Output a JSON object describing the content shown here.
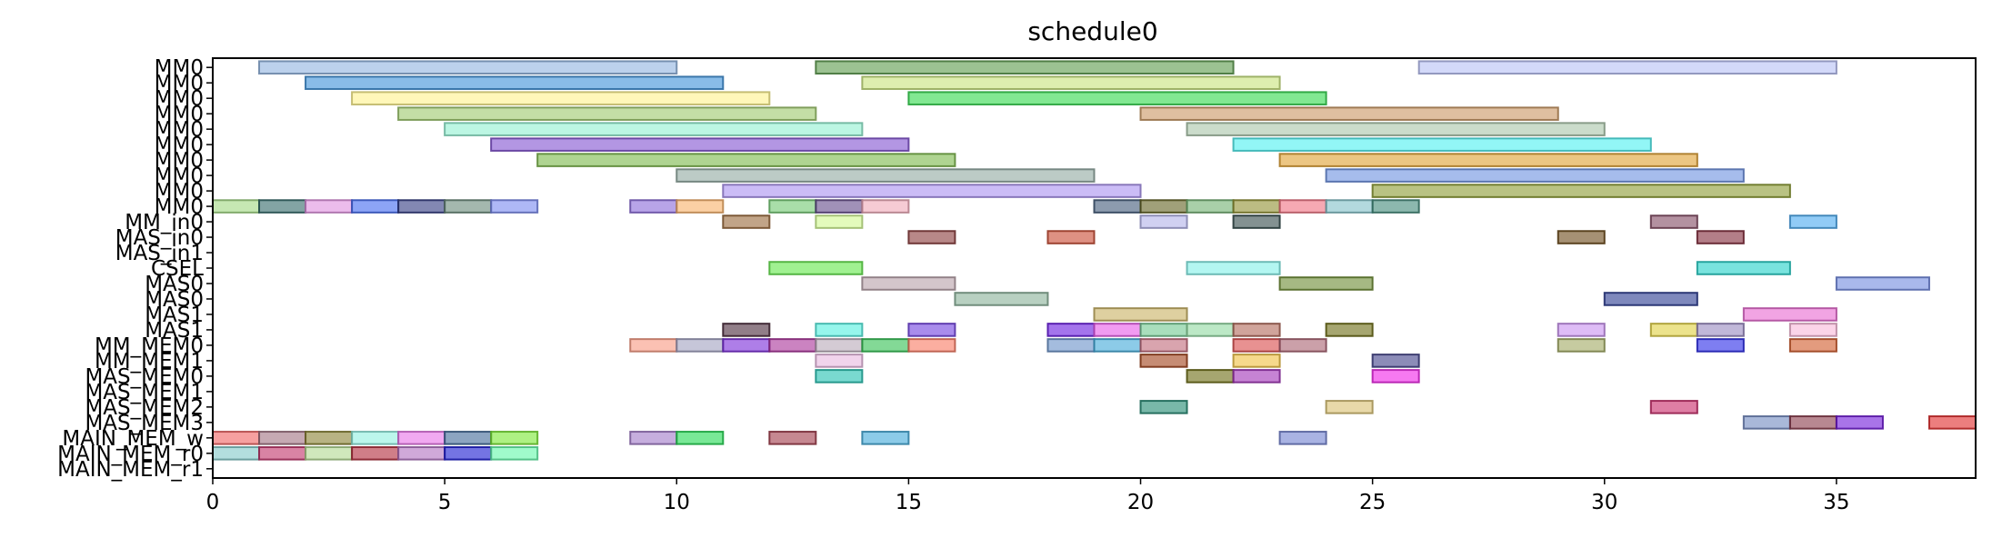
{
  "chart_data": {
    "type": "gantt",
    "title": "schedule0",
    "xlabel": "",
    "ylabel": "",
    "xlim": [
      0,
      38
    ],
    "xticks": [
      0,
      5,
      10,
      15,
      20,
      25,
      30,
      35
    ],
    "grid": false,
    "legend": "none",
    "rows": [
      "MM0",
      "MM0",
      "MM0",
      "MM0",
      "MM0",
      "MM0",
      "MM0",
      "MM0",
      "MM0",
      "MM0",
      "MM_in0",
      "MAS_in0",
      "MAS_in1",
      "CSEL",
      "MAS0",
      "MAS0",
      "MAS1",
      "MAS1",
      "MM_MEM0",
      "MM_MEM1",
      "MAS_MEM0",
      "MAS_MEM1",
      "MAS_MEM2",
      "MAS_MEM3",
      "MAIN_MEM_w",
      "MAIN_MEM_r0",
      "MAIN_MEM_r1"
    ],
    "tasks": [
      {
        "row": 0,
        "start": 1,
        "end": 10,
        "color": "#8fb3e0"
      },
      {
        "row": 0,
        "start": 13,
        "end": 22,
        "color": "#5a9a4a"
      },
      {
        "row": 0,
        "start": 26,
        "end": 35,
        "color": "#b6bff5"
      },
      {
        "row": 1,
        "start": 2,
        "end": 11,
        "color": "#3a8fd8"
      },
      {
        "row": 1,
        "start": 14,
        "end": 23,
        "color": "#c8e27a"
      },
      {
        "row": 2,
        "start": 3,
        "end": 12,
        "color": "#fff28a"
      },
      {
        "row": 2,
        "start": 15,
        "end": 24,
        "color": "#2fd84a"
      },
      {
        "row": 3,
        "start": 4,
        "end": 13,
        "color": "#9cc86a"
      },
      {
        "row": 3,
        "start": 20,
        "end": 29,
        "color": "#c99560"
      },
      {
        "row": 4,
        "start": 5,
        "end": 14,
        "color": "#90f0d0"
      },
      {
        "row": 4,
        "start": 21,
        "end": 30,
        "color": "#a8c4a8"
      },
      {
        "row": 5,
        "start": 6,
        "end": 15,
        "color": "#8050d0"
      },
      {
        "row": 5,
        "start": 22,
        "end": 31,
        "color": "#4af0f0"
      },
      {
        "row": 6,
        "start": 7,
        "end": 16,
        "color": "#7ab848"
      },
      {
        "row": 6,
        "start": 23,
        "end": 32,
        "color": "#e0a030"
      },
      {
        "row": 7,
        "start": 10,
        "end": 19,
        "color": "#90a8a0"
      },
      {
        "row": 7,
        "start": 24,
        "end": 33,
        "color": "#6a90e0"
      },
      {
        "row": 8,
        "start": 11,
        "end": 20,
        "color": "#a890f0"
      },
      {
        "row": 8,
        "start": 25,
        "end": 34,
        "color": "#8a9a30"
      },
      {
        "row": 9,
        "start": 0,
        "end": 1,
        "color": "#a0d880"
      },
      {
        "row": 9,
        "start": 1,
        "end": 2,
        "color": "#306868"
      },
      {
        "row": 9,
        "start": 2,
        "end": 3,
        "color": "#e090e0"
      },
      {
        "row": 9,
        "start": 3,
        "end": 4,
        "color": "#4068f0"
      },
      {
        "row": 9,
        "start": 4,
        "end": 5,
        "color": "#303880"
      },
      {
        "row": 9,
        "start": 5,
        "end": 6,
        "color": "#688878"
      },
      {
        "row": 9,
        "start": 6,
        "end": 7,
        "color": "#7888f0"
      },
      {
        "row": 9,
        "start": 9,
        "end": 10,
        "color": "#8868d8"
      },
      {
        "row": 9,
        "start": 10,
        "end": 11,
        "color": "#f8b068"
      },
      {
        "row": 9,
        "start": 12,
        "end": 13,
        "color": "#70c870"
      },
      {
        "row": 9,
        "start": 13,
        "end": 14,
        "color": "#604888"
      },
      {
        "row": 9,
        "start": 14,
        "end": 15,
        "color": "#f0a8b8"
      },
      {
        "row": 9,
        "start": 19,
        "end": 20,
        "color": "#405878"
      },
      {
        "row": 9,
        "start": 20,
        "end": 21,
        "color": "#606020"
      },
      {
        "row": 9,
        "start": 21,
        "end": 22,
        "color": "#70b070"
      },
      {
        "row": 9,
        "start": 22,
        "end": 23,
        "color": "#909030"
      },
      {
        "row": 9,
        "start": 23,
        "end": 24,
        "color": "#f07080"
      },
      {
        "row": 9,
        "start": 24,
        "end": 25,
        "color": "#80c0c8"
      },
      {
        "row": 9,
        "start": 25,
        "end": 26,
        "color": "#408878"
      },
      {
        "row": 10,
        "start": 11,
        "end": 12,
        "color": "#986838"
      },
      {
        "row": 10,
        "start": 13,
        "end": 14,
        "color": "#d0f890"
      },
      {
        "row": 10,
        "start": 20,
        "end": 21,
        "color": "#b0b0e8"
      },
      {
        "row": 10,
        "start": 22,
        "end": 23,
        "color": "#304848"
      },
      {
        "row": 10,
        "start": 31,
        "end": 32,
        "color": "#804860"
      },
      {
        "row": 10,
        "start": 34,
        "end": 35,
        "color": "#48a8f0"
      },
      {
        "row": 11,
        "start": 15,
        "end": 16,
        "color": "#883838"
      },
      {
        "row": 11,
        "start": 18,
        "end": 19,
        "color": "#c84830"
      },
      {
        "row": 11,
        "start": 29,
        "end": 30,
        "color": "#6a4818"
      },
      {
        "row": 11,
        "start": 32,
        "end": 33,
        "color": "#802838"
      },
      {
        "row": 13,
        "start": 12,
        "end": 14,
        "color": "#60e848"
      },
      {
        "row": 13,
        "start": 21,
        "end": 23,
        "color": "#80f0e8"
      },
      {
        "row": 13,
        "start": 32,
        "end": 34,
        "color": "#20d0c8"
      },
      {
        "row": 14,
        "start": 14,
        "end": 16,
        "color": "#b8a0a8"
      },
      {
        "row": 14,
        "start": 23,
        "end": 25,
        "color": "#6a8a30"
      },
      {
        "row": 14,
        "start": 35,
        "end": 37,
        "color": "#7088e0"
      },
      {
        "row": 15,
        "start": 16,
        "end": 18,
        "color": "#88b098"
      },
      {
        "row": 15,
        "start": 30,
        "end": 32,
        "color": "#283890"
      },
      {
        "row": 16,
        "start": 19,
        "end": 21,
        "color": "#c8b060"
      },
      {
        "row": 16,
        "start": 33,
        "end": 35,
        "color": "#e868d0"
      },
      {
        "row": 17,
        "start": 11,
        "end": 12,
        "color": "#482838"
      },
      {
        "row": 17,
        "start": 13,
        "end": 14,
        "color": "#50f0e0"
      },
      {
        "row": 17,
        "start": 15,
        "end": 16,
        "color": "#7040e0"
      },
      {
        "row": 17,
        "start": 18,
        "end": 19,
        "color": "#6818e0"
      },
      {
        "row": 17,
        "start": 19,
        "end": 20,
        "color": "#e858e8"
      },
      {
        "row": 17,
        "start": 20,
        "end": 21,
        "color": "#70c890"
      },
      {
        "row": 17,
        "start": 21,
        "end": 22,
        "color": "#90d8a0"
      },
      {
        "row": 17,
        "start": 22,
        "end": 23,
        "color": "#b06858"
      },
      {
        "row": 17,
        "start": 24,
        "end": 25,
        "color": "#6a6a10"
      },
      {
        "row": 17,
        "start": 29,
        "end": 30,
        "color": "#c890f0"
      },
      {
        "row": 17,
        "start": 31,
        "end": 32,
        "color": "#e0d040"
      },
      {
        "row": 17,
        "start": 32,
        "end": 33,
        "color": "#9888c0"
      },
      {
        "row": 17,
        "start": 34,
        "end": 35,
        "color": "#f8b8d8"
      },
      {
        "row": 18,
        "start": 9,
        "end": 10,
        "color": "#f89880"
      },
      {
        "row": 18,
        "start": 10,
        "end": 11,
        "color": "#a0a0c0"
      },
      {
        "row": 18,
        "start": 11,
        "end": 12,
        "color": "#7828d8"
      },
      {
        "row": 18,
        "start": 12,
        "end": 13,
        "color": "#a83098"
      },
      {
        "row": 18,
        "start": 13,
        "end": 14,
        "color": "#b8a8b8"
      },
      {
        "row": 18,
        "start": 14,
        "end": 15,
        "color": "#30c050"
      },
      {
        "row": 18,
        "start": 15,
        "end": 16,
        "color": "#f87860"
      },
      {
        "row": 18,
        "start": 18,
        "end": 19,
        "color": "#6890c8"
      },
      {
        "row": 18,
        "start": 19,
        "end": 20,
        "color": "#40a8d8"
      },
      {
        "row": 18,
        "start": 20,
        "end": 21,
        "color": "#c06878"
      },
      {
        "row": 18,
        "start": 22,
        "end": 23,
        "color": "#d84848"
      },
      {
        "row": 18,
        "start": 23,
        "end": 24,
        "color": "#a86070"
      },
      {
        "row": 18,
        "start": 29,
        "end": 30,
        "color": "#a0a860"
      },
      {
        "row": 18,
        "start": 32,
        "end": 33,
        "color": "#2828e8"
      },
      {
        "row": 18,
        "start": 34,
        "end": 35,
        "color": "#d05828"
      },
      {
        "row": 19,
        "start": 13,
        "end": 14,
        "color": "#e8b8e0"
      },
      {
        "row": 19,
        "start": 20,
        "end": 21,
        "color": "#a04018"
      },
      {
        "row": 19,
        "start": 22,
        "end": 23,
        "color": "#f0c040"
      },
      {
        "row": 19,
        "start": 25,
        "end": 26,
        "color": "#404088"
      },
      {
        "row": 20,
        "start": 13,
        "end": 14,
        "color": "#20c0b0"
      },
      {
        "row": 20,
        "start": 21,
        "end": 22,
        "color": "#6a6a10"
      },
      {
        "row": 20,
        "start": 22,
        "end": 23,
        "color": "#a030b8"
      },
      {
        "row": 20,
        "start": 25,
        "end": 26,
        "color": "#f020e8"
      },
      {
        "row": 22,
        "start": 20,
        "end": 21,
        "color": "#208870"
      },
      {
        "row": 22,
        "start": 24,
        "end": 25,
        "color": "#d8c070"
      },
      {
        "row": 22,
        "start": 31,
        "end": 32,
        "color": "#c82868"
      },
      {
        "row": 23,
        "start": 33,
        "end": 34,
        "color": "#7088c0"
      },
      {
        "row": 23,
        "start": 34,
        "end": 35,
        "color": "#883848"
      },
      {
        "row": 23,
        "start": 35,
        "end": 36,
        "color": "#7018d8"
      },
      {
        "row": 23,
        "start": 37,
        "end": 38,
        "color": "#e02828"
      },
      {
        "row": 24,
        "start": 0,
        "end": 1,
        "color": "#f06060"
      },
      {
        "row": 24,
        "start": 1,
        "end": 2,
        "color": "#a07080"
      },
      {
        "row": 24,
        "start": 2,
        "end": 3,
        "color": "#888030"
      },
      {
        "row": 24,
        "start": 3,
        "end": 4,
        "color": "#90f0e0"
      },
      {
        "row": 24,
        "start": 4,
        "end": 5,
        "color": "#e870e8"
      },
      {
        "row": 24,
        "start": 5,
        "end": 6,
        "color": "#406898"
      },
      {
        "row": 24,
        "start": 6,
        "end": 7,
        "color": "#78e830"
      },
      {
        "row": 24,
        "start": 9,
        "end": 10,
        "color": "#a078c8"
      },
      {
        "row": 24,
        "start": 10,
        "end": 11,
        "color": "#20d850"
      },
      {
        "row": 24,
        "start": 12,
        "end": 13,
        "color": "#a03848"
      },
      {
        "row": 24,
        "start": 14,
        "end": 15,
        "color": "#40a8d8"
      },
      {
        "row": 24,
        "start": 23,
        "end": 24,
        "color": "#7080d0"
      },
      {
        "row": 25,
        "start": 0,
        "end": 1,
        "color": "#80c8c8"
      },
      {
        "row": 25,
        "start": 1,
        "end": 2,
        "color": "#c03068"
      },
      {
        "row": 25,
        "start": 2,
        "end": 3,
        "color": "#b0d890"
      },
      {
        "row": 25,
        "start": 3,
        "end": 4,
        "color": "#b02838"
      },
      {
        "row": 25,
        "start": 4,
        "end": 5,
        "color": "#b070c0"
      },
      {
        "row": 25,
        "start": 5,
        "end": 6,
        "color": "#1818d0"
      },
      {
        "row": 25,
        "start": 6,
        "end": 7,
        "color": "#60f8a8"
      }
    ]
  }
}
